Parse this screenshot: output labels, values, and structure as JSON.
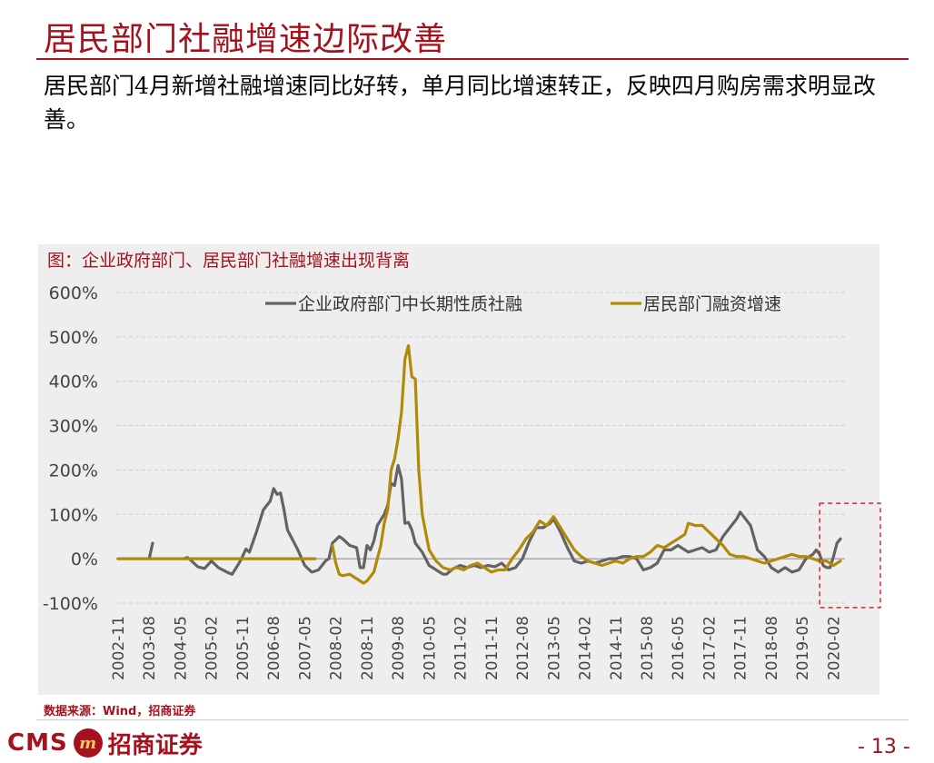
{
  "header": {
    "title": "居民部门社融增速边际改善",
    "summary": "居民部门4月新增社融增速同比好转，单月同比增速转正，反映四月购房需求明显改善。"
  },
  "chart_title": "图：企业政府部门、居民部门社融增速出现背离",
  "source": "数据来源：Wind，招商证券",
  "footer": {
    "logo_latin": "CMS",
    "logo_mark": "m",
    "logo_cn": "招商证券",
    "page_number": "- 13 -"
  },
  "colors": {
    "series_gray": "#636363",
    "series_gold": "#b08a08",
    "brand_red": "#a5111c",
    "highlight_box": "#d9252b"
  },
  "chart_data": {
    "type": "line",
    "ylim": [
      -100,
      600
    ],
    "yticks": [
      -100,
      0,
      100,
      200,
      300,
      400,
      500,
      600
    ],
    "ytick_labels": [
      "-100%",
      "0%",
      "100%",
      "200%",
      "300%",
      "400%",
      "500%",
      "600%"
    ],
    "xticks": [
      "2002-11",
      "2003-08",
      "2004-05",
      "2005-02",
      "2005-11",
      "2006-08",
      "2007-05",
      "2008-02",
      "2008-11",
      "2009-08",
      "2010-05",
      "2011-02",
      "2011-11",
      "2012-08",
      "2013-05",
      "2014-02",
      "2014-11",
      "2015-08",
      "2016-05",
      "2017-02",
      "2017-11",
      "2018-08",
      "2019-05",
      "2020-02"
    ],
    "legend_position": "top",
    "grid": "horizontal-dashed",
    "highlight_box": {
      "from": "2019-10",
      "to": "2020-04",
      "ymin": -110,
      "ymax": 125
    },
    "series": [
      {
        "name": "企业政府部门中长期性质社融",
        "color": "#636363",
        "segments": [
          [
            [
              "2003-08",
              0
            ],
            [
              "2003-09",
              35
            ]
          ],
          [
            [
              "2004-06",
              0
            ],
            [
              "2004-07",
              3
            ],
            [
              "2004-08",
              -3
            ],
            [
              "2004-10",
              -18
            ],
            [
              "2004-12",
              -22
            ],
            [
              "2005-02",
              -5
            ],
            [
              "2005-04",
              -20
            ],
            [
              "2005-07",
              -32
            ],
            [
              "2005-08",
              -35
            ],
            [
              "2005-10",
              -10
            ],
            [
              "2005-11",
              5
            ],
            [
              "2005-12",
              22
            ],
            [
              "2006-01",
              15
            ],
            [
              "2006-03",
              60
            ],
            [
              "2006-05",
              110
            ],
            [
              "2006-07",
              130
            ],
            [
              "2006-08",
              158
            ],
            [
              "2006-09",
              145
            ],
            [
              "2006-10",
              148
            ],
            [
              "2006-11",
              110
            ],
            [
              "2006-12",
              65
            ],
            [
              "2007-02",
              35
            ],
            [
              "2007-03",
              20
            ],
            [
              "2007-05",
              -15
            ],
            [
              "2007-07",
              -30
            ],
            [
              "2007-08",
              -28
            ],
            [
              "2007-09",
              -25
            ],
            [
              "2007-11",
              -5
            ],
            [
              "2007-12",
              0
            ],
            [
              "2008-01",
              35
            ],
            [
              "2008-03",
              50
            ],
            [
              "2008-04",
              45
            ],
            [
              "2008-06",
              30
            ],
            [
              "2008-08",
              25
            ],
            [
              "2008-09",
              -20
            ],
            [
              "2008-10",
              -20
            ],
            [
              "2008-11",
              30
            ],
            [
              "2008-12",
              20
            ],
            [
              "2009-01",
              40
            ],
            [
              "2009-02",
              75
            ],
            [
              "2009-04",
              100
            ],
            [
              "2009-05",
              120
            ],
            [
              "2009-06",
              170
            ],
            [
              "2009-07",
              165
            ],
            [
              "2009-08",
              210
            ],
            [
              "2009-09",
              180
            ],
            [
              "2009-10",
              80
            ],
            [
              "2009-11",
              82
            ],
            [
              "2009-12",
              65
            ],
            [
              "2010-01",
              35
            ],
            [
              "2010-03",
              15
            ],
            [
              "2010-05",
              -15
            ],
            [
              "2010-07",
              -25
            ],
            [
              "2010-09",
              -35
            ],
            [
              "2010-10",
              -35
            ],
            [
              "2010-12",
              -22
            ],
            [
              "2011-02",
              -15
            ],
            [
              "2011-04",
              -20
            ],
            [
              "2011-06",
              -15
            ],
            [
              "2011-08",
              -20
            ],
            [
              "2011-10",
              -15
            ],
            [
              "2011-12",
              -18
            ],
            [
              "2012-02",
              -10
            ],
            [
              "2012-04",
              -25
            ],
            [
              "2012-06",
              -20
            ],
            [
              "2012-08",
              0
            ],
            [
              "2012-10",
              40
            ],
            [
              "2012-12",
              70
            ],
            [
              "2013-02",
              70
            ],
            [
              "2013-04",
              80
            ],
            [
              "2013-05",
              90
            ],
            [
              "2013-07",
              60
            ],
            [
              "2013-09",
              25
            ],
            [
              "2013-11",
              -5
            ],
            [
              "2014-01",
              -10
            ],
            [
              "2014-03",
              -5
            ],
            [
              "2014-05",
              -10
            ],
            [
              "2014-07",
              -5
            ],
            [
              "2014-09",
              0
            ],
            [
              "2014-11",
              0
            ],
            [
              "2015-01",
              5
            ],
            [
              "2015-03",
              5
            ],
            [
              "2015-05",
              0
            ],
            [
              "2015-07",
              -25
            ],
            [
              "2015-09",
              -20
            ],
            [
              "2015-11",
              -10
            ],
            [
              "2016-01",
              20
            ],
            [
              "2016-03",
              20
            ],
            [
              "2016-05",
              30
            ],
            [
              "2016-07",
              20
            ],
            [
              "2016-08",
              15
            ],
            [
              "2016-10",
              20
            ],
            [
              "2016-12",
              25
            ],
            [
              "2017-02",
              15
            ],
            [
              "2017-04",
              20
            ],
            [
              "2017-06",
              50
            ],
            [
              "2017-08",
              70
            ],
            [
              "2017-10",
              90
            ],
            [
              "2017-11",
              105
            ],
            [
              "2017-12",
              95
            ],
            [
              "2018-02",
              75
            ],
            [
              "2018-04",
              20
            ],
            [
              "2018-06",
              5
            ],
            [
              "2018-08",
              -20
            ],
            [
              "2018-10",
              -30
            ],
            [
              "2018-12",
              -20
            ],
            [
              "2019-02",
              -30
            ],
            [
              "2019-04",
              -25
            ],
            [
              "2019-06",
              0
            ],
            [
              "2019-08",
              10
            ],
            [
              "2019-09",
              20
            ],
            [
              "2019-10",
              10
            ],
            [
              "2019-11",
              -15
            ],
            [
              "2019-12",
              -20
            ],
            [
              "2020-01",
              -20
            ],
            [
              "2020-02",
              5
            ],
            [
              "2020-03",
              35
            ],
            [
              "2020-04",
              45
            ]
          ]
        ]
      },
      {
        "name": "居民部门融资增速",
        "color": "#b08a08",
        "segments": [
          [
            [
              "2002-11",
              0
            ],
            [
              "2007-05",
              0
            ],
            [
              "2007-08",
              0
            ]
          ],
          [
            [
              "2008-01",
              30
            ],
            [
              "2008-02",
              -10
            ],
            [
              "2008-03",
              -35
            ],
            [
              "2008-04",
              -38
            ],
            [
              "2008-06",
              -35
            ],
            [
              "2008-08",
              -45
            ],
            [
              "2008-10",
              -55
            ],
            [
              "2008-11",
              -50
            ],
            [
              "2009-01",
              -30
            ],
            [
              "2009-03",
              30
            ],
            [
              "2009-04",
              80
            ],
            [
              "2009-05",
              110
            ],
            [
              "2009-06",
              200
            ],
            [
              "2009-07",
              225
            ],
            [
              "2009-08",
              270
            ],
            [
              "2009-09",
              330
            ],
            [
              "2009-10",
              450
            ],
            [
              "2009-11",
              480
            ],
            [
              "2009-12",
              410
            ],
            [
              "2010-01",
              405
            ],
            [
              "2010-02",
              200
            ],
            [
              "2010-03",
              100
            ],
            [
              "2010-05",
              20
            ],
            [
              "2010-07",
              -5
            ],
            [
              "2010-09",
              -20
            ],
            [
              "2010-11",
              -25
            ],
            [
              "2011-01",
              -20
            ],
            [
              "2011-03",
              -25
            ],
            [
              "2011-05",
              -15
            ],
            [
              "2011-07",
              -10
            ],
            [
              "2011-09",
              -20
            ],
            [
              "2011-11",
              -30
            ],
            [
              "2012-01",
              -25
            ],
            [
              "2012-03",
              -25
            ],
            [
              "2012-05",
              0
            ],
            [
              "2012-07",
              20
            ],
            [
              "2012-09",
              45
            ],
            [
              "2012-11",
              60
            ],
            [
              "2013-01",
              85
            ],
            [
              "2013-03",
              75
            ],
            [
              "2013-05",
              95
            ],
            [
              "2013-07",
              70
            ],
            [
              "2013-09",
              45
            ],
            [
              "2013-11",
              20
            ],
            [
              "2014-01",
              5
            ],
            [
              "2014-03",
              -5
            ],
            [
              "2014-05",
              -10
            ],
            [
              "2014-07",
              -15
            ],
            [
              "2014-09",
              -10
            ],
            [
              "2014-11",
              -5
            ],
            [
              "2015-01",
              -10
            ],
            [
              "2015-03",
              0
            ],
            [
              "2015-05",
              5
            ],
            [
              "2015-07",
              5
            ],
            [
              "2015-09",
              15
            ],
            [
              "2015-11",
              30
            ],
            [
              "2016-01",
              25
            ],
            [
              "2016-03",
              35
            ],
            [
              "2016-05",
              45
            ],
            [
              "2016-07",
              55
            ],
            [
              "2016-08",
              80
            ],
            [
              "2016-10",
              75
            ],
            [
              "2016-12",
              75
            ],
            [
              "2017-02",
              60
            ],
            [
              "2017-04",
              45
            ],
            [
              "2017-06",
              30
            ],
            [
              "2017-08",
              10
            ],
            [
              "2017-10",
              5
            ],
            [
              "2017-12",
              5
            ],
            [
              "2018-02",
              0
            ],
            [
              "2018-04",
              -5
            ],
            [
              "2018-06",
              -10
            ],
            [
              "2018-08",
              -5
            ],
            [
              "2018-10",
              0
            ],
            [
              "2018-12",
              5
            ],
            [
              "2019-02",
              10
            ],
            [
              "2019-04",
              5
            ],
            [
              "2019-06",
              5
            ],
            [
              "2019-08",
              0
            ],
            [
              "2019-10",
              -5
            ],
            [
              "2019-12",
              -5
            ],
            [
              "2020-02",
              -15
            ],
            [
              "2020-03",
              -10
            ],
            [
              "2020-04",
              -5
            ]
          ]
        ]
      }
    ]
  }
}
